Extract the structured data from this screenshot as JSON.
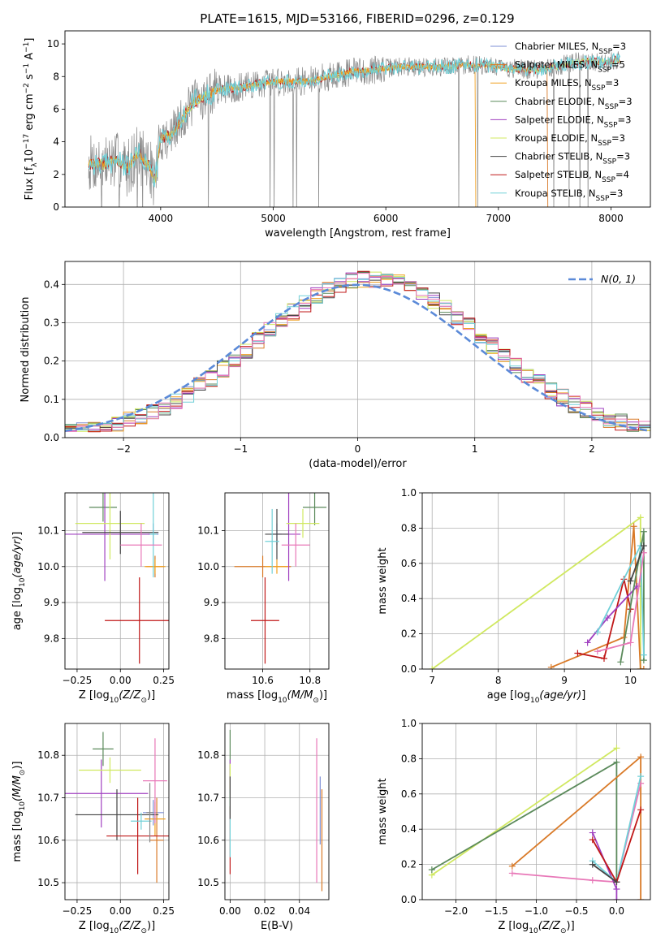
{
  "figure_title": "PLATE=1615, MJD=53166, FIBERID=0296, z=0.129",
  "colors": {
    "Chabrier MILES": "#7d8fd6",
    "Salpeter MILES": "#d97a28",
    "Kroupa MILES": "#f0a020",
    "Chabrier ELODIE": "#5b8a5b",
    "Salpeter ELODIE": "#a040c0",
    "Kroupa ELODIE": "#d0e860",
    "Chabrier STELIB": "#444444",
    "Salpeter STELIB": "#c01818",
    "Kroupa STELIB": "#70d0d8",
    "Pink": "#e878b8",
    "Normal": "#5b8ad8",
    "Gray": "#888888"
  },
  "chart_data": [
    {
      "id": "spectrum",
      "type": "line",
      "xlabel": "wavelength [Angstrom, rest frame]",
      "ylabel": "Flux [f",
      "xlim": [
        3150,
        8350
      ],
      "ylim": [
        0,
        10.8
      ],
      "xticks": [
        4000,
        5000,
        6000,
        7000,
        8000
      ],
      "yticks": [
        0,
        2,
        4,
        6,
        8,
        10
      ],
      "legend": "right",
      "legend_entries": [
        {
          "name": "Chabrier MILES, N",
          "sub": "SSP",
          "tail": "=3",
          "color": "Chabrier MILES"
        },
        {
          "name": "Salpeter MILES, N",
          "sub": "SSP",
          "tail": "=5",
          "color": "Salpeter MILES"
        },
        {
          "name": "Kroupa MILES, N",
          "sub": "SSP",
          "tail": "=3",
          "color": "Kroupa MILES"
        },
        {
          "name": "Chabrier ELODIE, N",
          "sub": "SSP",
          "tail": "=3",
          "color": "Chabrier ELODIE"
        },
        {
          "name": "Salpeter ELODIE, N",
          "sub": "SSP",
          "tail": "=3",
          "color": "Salpeter ELODIE"
        },
        {
          "name": "Kroupa ELODIE, N",
          "sub": "SSP",
          "tail": "=3",
          "color": "Kroupa ELODIE"
        },
        {
          "name": "Chabrier STELIB, N",
          "sub": "SSP",
          "tail": "=3",
          "color": "Chabrier STELIB"
        },
        {
          "name": "Salpeter STELIB, N",
          "sub": "SSP",
          "tail": "=4",
          "color": "Salpeter STELIB"
        },
        {
          "name": "Kroupa STELIB, N",
          "sub": "SSP",
          "tail": "=3",
          "color": "Kroupa STELIB"
        }
      ],
      "continuum": [
        [
          3360,
          2.7
        ],
        [
          3500,
          2.6
        ],
        [
          3600,
          2.9
        ],
        [
          3700,
          2.4
        ],
        [
          3800,
          3.3
        ],
        [
          3900,
          2.5
        ],
        [
          3950,
          1.6
        ],
        [
          4000,
          4.2
        ],
        [
          4100,
          4.4
        ],
        [
          4200,
          5.5
        ],
        [
          4300,
          6.5
        ],
        [
          4400,
          6.8
        ],
        [
          4500,
          7.2
        ],
        [
          4700,
          7.3
        ],
        [
          4900,
          7.6
        ],
        [
          5100,
          7.7
        ],
        [
          5300,
          7.7
        ],
        [
          5500,
          8.0
        ],
        [
          5700,
          8.3
        ],
        [
          5900,
          8.4
        ],
        [
          6100,
          8.6
        ],
        [
          6300,
          8.6
        ],
        [
          6500,
          8.6
        ],
        [
          6700,
          8.7
        ],
        [
          6900,
          8.7
        ],
        [
          7100,
          8.5
        ],
        [
          7300,
          8.4
        ],
        [
          7500,
          8.6
        ],
        [
          7700,
          8.9
        ],
        [
          7900,
          8.9
        ],
        [
          8050,
          9.0
        ]
      ],
      "flux_range": [
        3360,
        8080
      ]
    },
    {
      "id": "residuals",
      "type": "histogram",
      "xlabel": "(data-model)/error",
      "ylabel": "Normed distribution",
      "xlim": [
        -2.5,
        2.5
      ],
      "ylim": [
        0,
        0.46
      ],
      "xticks": [
        -2,
        -1,
        0,
        1,
        2
      ],
      "yticks": [
        0,
        0.1,
        0.2,
        0.3,
        0.4
      ],
      "bin_width": 0.1,
      "legend": "top-right",
      "legend_entry": "N(0, 1)"
    },
    {
      "id": "age-vs-z",
      "type": "errorbar",
      "xlabel": "Z [log",
      "ylabel": "age  [log",
      "xlim": [
        -0.32,
        0.28
      ],
      "ylim": [
        9.715,
        10.205
      ],
      "xticks": [
        -0.25,
        0.0,
        0.25
      ],
      "yticks": [
        9.8,
        9.9,
        10.0,
        10.1
      ],
      "points": [
        {
          "color": "Chabrier MILES",
          "x": 0.19,
          "y": 10.09,
          "xerr": 0.03,
          "yerr": 0.03
        },
        {
          "color": "Salpeter MILES",
          "x": 0.2,
          "y": 10.0,
          "xerr": 0.05,
          "yerr": 0.03
        },
        {
          "color": "Kroupa MILES",
          "x": 0.2,
          "y": 10.0,
          "xerr": 0.06,
          "yerr": 0.02
        },
        {
          "color": "Chabrier ELODIE",
          "x": -0.1,
          "y": 10.165,
          "xerr": 0.08,
          "yerr": 0.04
        },
        {
          "color": "Salpeter ELODIE",
          "x": -0.09,
          "y": 10.09,
          "xerr": 0.26,
          "yerr": 0.13
        },
        {
          "color": "Kroupa ELODIE",
          "x": -0.06,
          "y": 10.12,
          "xerr": 0.2,
          "yerr": 0.1
        },
        {
          "color": "Chabrier STELIB",
          "x": 0.0,
          "y": 10.095,
          "xerr": 0.22,
          "yerr": 0.06
        },
        {
          "color": "Salpeter STELIB",
          "x": 0.11,
          "y": 9.85,
          "xerr": 0.2,
          "yerr": 0.12
        },
        {
          "color": "Kroupa STELIB",
          "x": 0.19,
          "y": 10.09,
          "xerr": 0.02,
          "yerr": 0.12
        },
        {
          "color": "Pink",
          "x": 0.12,
          "y": 10.06,
          "xerr": 0.12,
          "yerr": 0.06
        }
      ]
    },
    {
      "id": "age-vs-mass",
      "type": "errorbar",
      "xlabel": "mass [log",
      "ylabel": "",
      "xlim": [
        10.44,
        10.88
      ],
      "ylim": [
        9.715,
        10.205
      ],
      "xticks": [
        10.6,
        10.8
      ],
      "yticks": [
        9.8,
        9.9,
        10.0,
        10.1
      ],
      "points": [
        {
          "color": "Chabrier MILES",
          "x": 10.66,
          "y": 10.09,
          "xerr": 0.02,
          "yerr": 0.03
        },
        {
          "color": "Salpeter MILES",
          "x": 10.6,
          "y": 10.0,
          "xerr": 0.12,
          "yerr": 0.03
        },
        {
          "color": "Kroupa MILES",
          "x": 10.66,
          "y": 10.0,
          "xerr": 0.05,
          "yerr": 0.02
        },
        {
          "color": "Chabrier ELODIE",
          "x": 10.82,
          "y": 10.165,
          "xerr": 0.05,
          "yerr": 0.05
        },
        {
          "color": "Salpeter ELODIE",
          "x": 10.71,
          "y": 10.09,
          "xerr": 0.05,
          "yerr": 0.13
        },
        {
          "color": "Kroupa ELODIE",
          "x": 10.77,
          "y": 10.12,
          "xerr": 0.07,
          "yerr": 0.04
        },
        {
          "color": "Chabrier STELIB",
          "x": 10.66,
          "y": 10.09,
          "xerr": 0.05,
          "yerr": 0.07
        },
        {
          "color": "Salpeter STELIB",
          "x": 10.61,
          "y": 9.85,
          "xerr": 0.06,
          "yerr": 0.12
        },
        {
          "color": "Kroupa STELIB",
          "x": 10.64,
          "y": 10.07,
          "xerr": 0.03,
          "yerr": 0.09
        },
        {
          "color": "Pink",
          "x": 10.74,
          "y": 10.06,
          "xerr": 0.06,
          "yerr": 0.06
        }
      ]
    },
    {
      "id": "mass-weight-vs-age",
      "type": "line",
      "xlabel": "age  [log",
      "ylabel": "mass weight",
      "xlim": [
        6.85,
        10.3
      ],
      "ylim": [
        0,
        1.0
      ],
      "xticks": [
        7,
        8,
        9,
        10
      ],
      "yticks": [
        0.0,
        0.2,
        0.4,
        0.6,
        0.8,
        1.0
      ],
      "series": [
        {
          "color": "Kroupa ELODIE",
          "x": [
            7.0,
            10.15,
            10.15
          ],
          "y": [
            0.0,
            0.86,
            0.0
          ]
        },
        {
          "color": "Salpeter MILES",
          "x": [
            8.8,
            9.9,
            10.05,
            10.15,
            10.2
          ],
          "y": [
            0.01,
            0.18,
            0.81,
            0.0,
            0.0
          ]
        },
        {
          "color": "Salpeter STELIB",
          "x": [
            9.2,
            9.6,
            9.9,
            10.0
          ],
          "y": [
            0.09,
            0.06,
            0.51,
            0.34
          ]
        },
        {
          "color": "Salpeter ELODIE",
          "x": [
            9.35,
            9.65,
            10.1
          ],
          "y": [
            0.15,
            0.29,
            0.47
          ]
        },
        {
          "color": "Chabrier ELODIE",
          "x": [
            9.85,
            10.2,
            10.2
          ],
          "y": [
            0.04,
            0.78,
            0.05
          ]
        },
        {
          "color": "Kroupa STELIB",
          "x": [
            9.5,
            10.15,
            10.2
          ],
          "y": [
            0.21,
            0.7,
            0.08
          ]
        },
        {
          "color": "Pink",
          "x": [
            9.5,
            10.0,
            10.2
          ],
          "y": [
            0.1,
            0.15,
            0.66
          ]
        },
        {
          "color": "Chabrier STELIB",
          "x": [
            10.0,
            10.2
          ],
          "y": [
            0.5,
            0.7
          ]
        }
      ]
    },
    {
      "id": "mass-vs-z",
      "type": "errorbar",
      "xlabel": "Z [log",
      "ylabel": "mass [log",
      "xlim": [
        -0.32,
        0.28
      ],
      "ylim": [
        10.46,
        10.875
      ],
      "xticks": [
        -0.25,
        0.0,
        0.25
      ],
      "yticks": [
        10.5,
        10.6,
        10.7,
        10.8
      ],
      "points": [
        {
          "color": "Chabrier MILES",
          "x": 0.19,
          "y": 10.665,
          "xerr": 0.06,
          "yerr": 0.03
        },
        {
          "color": "Salpeter MILES",
          "x": 0.21,
          "y": 10.6,
          "xerr": 0.04,
          "yerr": 0.1
        },
        {
          "color": "Kroupa MILES",
          "x": 0.2,
          "y": 10.65,
          "xerr": 0.06,
          "yerr": 0.04
        },
        {
          "color": "Chabrier ELODIE",
          "x": -0.1,
          "y": 10.815,
          "xerr": 0.06,
          "yerr": 0.04
        },
        {
          "color": "Salpeter ELODIE",
          "x": -0.11,
          "y": 10.71,
          "xerr": 0.27,
          "yerr": 0.08
        },
        {
          "color": "Kroupa ELODIE",
          "x": -0.06,
          "y": 10.765,
          "xerr": 0.18,
          "yerr": 0.03
        },
        {
          "color": "Chabrier STELIB",
          "x": -0.02,
          "y": 10.66,
          "xerr": 0.24,
          "yerr": 0.06
        },
        {
          "color": "Salpeter STELIB",
          "x": 0.1,
          "y": 10.61,
          "xerr": 0.18,
          "yerr": 0.09
        },
        {
          "color": "Kroupa STELIB",
          "x": 0.12,
          "y": 10.645,
          "xerr": 0.06,
          "yerr": 0.02
        },
        {
          "color": "Pink",
          "x": 0.2,
          "y": 10.74,
          "xerr": 0.07,
          "yerr": 0.1
        },
        {
          "color": "Gray",
          "x": 0.17,
          "y": 10.665,
          "xerr": 0.02,
          "yerr": 0.07
        }
      ]
    },
    {
      "id": "mass-vs-ebv",
      "type": "errorbar",
      "xlabel": "E(B-V)",
      "ylabel": "",
      "xlim": [
        -0.003,
        0.057
      ],
      "ylim": [
        10.46,
        10.875
      ],
      "xticks": [
        0.0,
        0.02,
        0.04
      ],
      "yticks": [
        10.5,
        10.6,
        10.7,
        10.8
      ],
      "points": [
        {
          "color": "Chabrier ELODIE",
          "x": 0.0,
          "y": 10.78,
          "xerr": 0.0,
          "yerr": 0.08
        },
        {
          "color": "Salpeter ELODIE",
          "x": 0.0,
          "y": 10.75,
          "xerr": 0.0,
          "yerr": 0.04
        },
        {
          "color": "Kroupa ELODIE",
          "x": 0.0,
          "y": 10.72,
          "xerr": 0.0,
          "yerr": 0.06
        },
        {
          "color": "Salpeter STELIB",
          "x": 0.0,
          "y": 10.6,
          "xerr": 0.0,
          "yerr": 0.08
        },
        {
          "color": "Kroupa STELIB",
          "x": 0.0,
          "y": 10.64,
          "xerr": 0.0,
          "yerr": 0.08
        },
        {
          "color": "Chabrier STELIB",
          "x": 0.0,
          "y": 10.7,
          "xerr": 0.0,
          "yerr": 0.05
        },
        {
          "color": "Pink",
          "x": 0.05,
          "y": 10.67,
          "xerr": 0.0,
          "yerr": 0.17
        },
        {
          "color": "Salpeter MILES",
          "x": 0.053,
          "y": 10.6,
          "xerr": 0.0,
          "yerr": 0.12
        },
        {
          "color": "Chabrier MILES",
          "x": 0.052,
          "y": 10.67,
          "xerr": 0.0,
          "yerr": 0.08
        }
      ]
    },
    {
      "id": "mass-weight-vs-z",
      "type": "line",
      "xlabel": "Z [log",
      "ylabel": "mass weight",
      "xlim": [
        -2.42,
        0.42
      ],
      "ylim": [
        0,
        1.0
      ],
      "xticks": [
        -2.0,
        -1.5,
        -1.0,
        -0.5,
        0.0
      ],
      "yticks": [
        0.0,
        0.2,
        0.4,
        0.6,
        0.8,
        1.0
      ],
      "series": [
        {
          "color": "Kroupa ELODIE",
          "x": [
            -2.3,
            0.0
          ],
          "y": [
            0.14,
            0.86
          ]
        },
        {
          "color": "Chabrier ELODIE",
          "x": [
            -2.3,
            0.0,
            0.0
          ],
          "y": [
            0.17,
            0.78,
            0.1
          ]
        },
        {
          "color": "Salpeter MILES",
          "x": [
            -1.3,
            0.3,
            0.3
          ],
          "y": [
            0.19,
            0.81,
            0.0
          ]
        },
        {
          "color": "Pink",
          "x": [
            -1.3,
            -0.3,
            0.0,
            0.3
          ],
          "y": [
            0.15,
            0.11,
            0.1,
            0.66
          ]
        },
        {
          "color": "Salpeter ELODIE",
          "x": [
            -0.3,
            0.0,
            0.0
          ],
          "y": [
            0.38,
            0.06,
            0.0
          ]
        },
        {
          "color": "Kroupa STELIB",
          "x": [
            -0.3,
            0.0,
            0.3
          ],
          "y": [
            0.22,
            0.1,
            0.7
          ]
        },
        {
          "color": "Salpeter STELIB",
          "x": [
            -0.3,
            0.0,
            0.3
          ],
          "y": [
            0.34,
            0.1,
            0.51
          ]
        },
        {
          "color": "Chabrier STELIB",
          "x": [
            -0.3,
            0.0
          ],
          "y": [
            0.2,
            0.1
          ]
        }
      ]
    }
  ]
}
